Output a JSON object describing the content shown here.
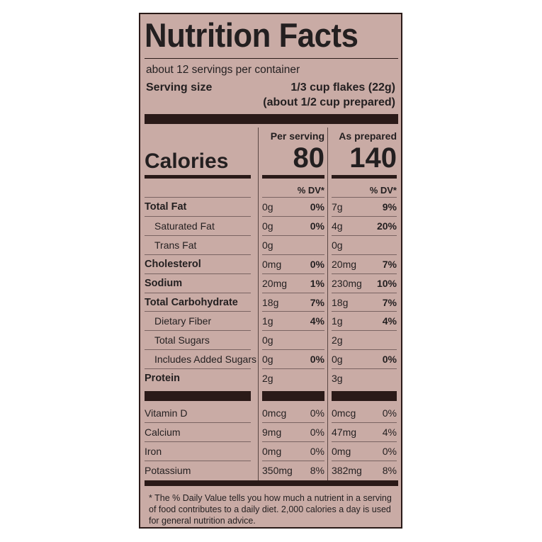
{
  "label": {
    "title": "Nutrition Facts",
    "servings_per_container": "about 12 servings per container",
    "serving_size_label": "Serving size",
    "serving_size_value": "1/3 cup flakes (22g)",
    "serving_size_prepared": "(about 1/2 cup prepared)",
    "col_per_serving": "Per serving",
    "col_as_prepared": "As prepared",
    "calories_label": "Calories",
    "calories_per_serving": "80",
    "calories_as_prepared": "140",
    "dv_header": "% DV*",
    "nutrients": [
      {
        "name": "Total Fat",
        "bold": true,
        "indent": false,
        "amt1": "0g",
        "dv1": "0%",
        "amt2": "7g",
        "dv2": "9%"
      },
      {
        "name": "Saturated Fat",
        "bold": false,
        "indent": true,
        "amt1": "0g",
        "dv1": "0%",
        "amt2": "4g",
        "dv2": "20%"
      },
      {
        "name": "Trans Fat",
        "bold": false,
        "indent": true,
        "amt1": "0g",
        "dv1": "",
        "amt2": "0g",
        "dv2": ""
      },
      {
        "name": "Cholesterol",
        "bold": true,
        "indent": false,
        "amt1": "0mg",
        "dv1": "0%",
        "amt2": "20mg",
        "dv2": "7%"
      },
      {
        "name": "Sodium",
        "bold": true,
        "indent": false,
        "amt1": "20mg",
        "dv1": "1%",
        "amt2": "230mg",
        "dv2": "10%"
      },
      {
        "name": "Total Carbohydrate",
        "bold": true,
        "indent": false,
        "amt1": "18g",
        "dv1": "7%",
        "amt2": "18g",
        "dv2": "7%"
      },
      {
        "name": "Dietary Fiber",
        "bold": false,
        "indent": true,
        "amt1": "1g",
        "dv1": "4%",
        "amt2": "1g",
        "dv2": "4%"
      },
      {
        "name": "Total Sugars",
        "bold": false,
        "indent": true,
        "amt1": "0g",
        "dv1": "",
        "amt2": "2g",
        "dv2": ""
      },
      {
        "name": "Includes Added Sugars",
        "bold": false,
        "indent": true,
        "amt1": "0g",
        "dv1": "0%",
        "amt2": "0g",
        "dv2": "0%"
      },
      {
        "name": "Protein",
        "bold": true,
        "indent": false,
        "amt1": "2g",
        "dv1": "",
        "amt2": "3g",
        "dv2": ""
      }
    ],
    "vitamins": [
      {
        "name": "Vitamin D",
        "amt1": "0mcg",
        "dv1": "0%",
        "amt2": "0mcg",
        "dv2": "0%"
      },
      {
        "name": "Calcium",
        "amt1": "9mg",
        "dv1": "0%",
        "amt2": "47mg",
        "dv2": "4%"
      },
      {
        "name": "Iron",
        "amt1": "0mg",
        "dv1": "0%",
        "amt2": "0mg",
        "dv2": "0%"
      },
      {
        "name": "Potassium",
        "amt1": "350mg",
        "dv1": "8%",
        "amt2": "382mg",
        "dv2": "8%"
      }
    ],
    "footnote": "* The % Daily Value tells you how much a nutrient in a serving of food contributes to a daily diet. 2,000 calories a day is used for general nutrition advice."
  }
}
